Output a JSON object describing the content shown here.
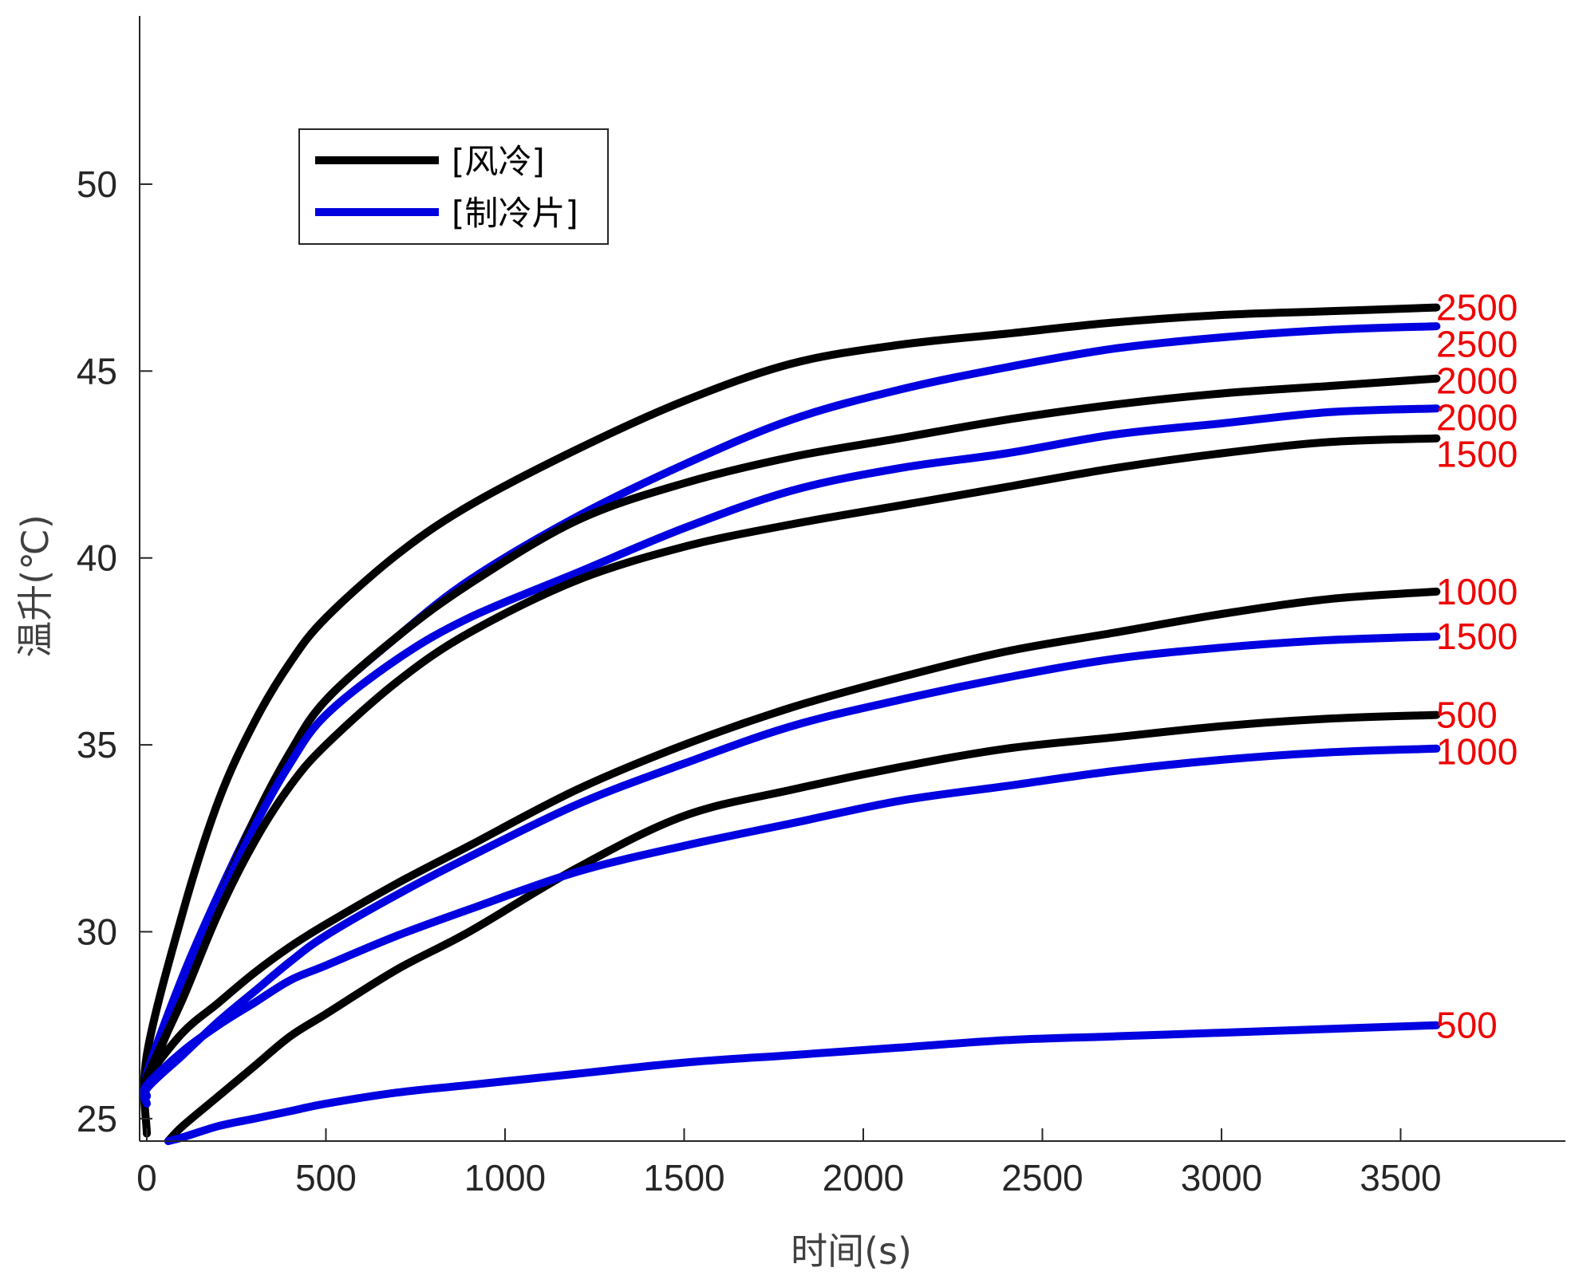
{
  "chart_data": {
    "type": "line",
    "title": "",
    "xlabel": "时间(s)",
    "ylabel": "温升(℃)",
    "xlim": [
      -20,
      3960
    ],
    "ylim": [
      24.4,
      54.5
    ],
    "xticks": [
      0,
      500,
      1000,
      1500,
      2000,
      2500,
      3000,
      3500
    ],
    "yticks": [
      25,
      30,
      35,
      40,
      45,
      50
    ],
    "grid": false,
    "legend": {
      "position": "top-left",
      "entries": [
        {
          "label": "[风冷]",
          "color": "#000000"
        },
        {
          "label": "[制冷片]",
          "color": "#0000e0"
        }
      ]
    },
    "x": [
      0,
      100,
      200,
      300,
      400,
      500,
      700,
      900,
      1200,
      1500,
      1800,
      2100,
      2400,
      2700,
      3000,
      3300,
      3600
    ],
    "series": [
      {
        "legend_group": "[风冷]",
        "end_label": "2500",
        "color": "#000000",
        "start": [
          0,
          24.6
        ],
        "values": [
          26.7,
          30.5,
          33.5,
          35.6,
          37.2,
          38.4,
          40.1,
          41.4,
          42.9,
          44.2,
          45.2,
          45.7,
          46.0,
          46.3,
          46.5,
          46.6,
          46.7
        ]
      },
      {
        "legend_group": "[制冷片]",
        "end_label": "2500",
        "color": "#0000e0",
        "start": [
          0,
          25.6
        ],
        "values": [
          26.2,
          28.8,
          31.0,
          33.0,
          34.8,
          36.2,
          37.9,
          39.4,
          41.1,
          42.5,
          43.7,
          44.5,
          45.1,
          45.6,
          45.9,
          46.1,
          46.2
        ]
      },
      {
        "legend_group": "[风冷]",
        "end_label": "2000",
        "color": "#000000",
        "start": [
          0,
          25.9
        ],
        "values": [
          26.0,
          28.3,
          30.8,
          33.0,
          34.8,
          36.2,
          37.9,
          39.3,
          41.0,
          42.0,
          42.7,
          43.2,
          43.7,
          44.1,
          44.4,
          44.6,
          44.8
        ]
      },
      {
        "legend_group": "[制冷片]",
        "end_label": "2000",
        "color": "#0000e0",
        "start": [
          0,
          25.8
        ],
        "values": [
          26.0,
          28.5,
          30.8,
          32.8,
          34.5,
          35.8,
          37.3,
          38.4,
          39.6,
          40.8,
          41.8,
          42.4,
          42.8,
          43.3,
          43.6,
          43.9,
          44.0
        ]
      },
      {
        "legend_group": "[风冷]",
        "end_label": "1500",
        "color": "#000000",
        "start": [
          0,
          25.6
        ],
        "values": [
          26.1,
          28.2,
          30.5,
          32.4,
          33.9,
          35.0,
          36.7,
          38.0,
          39.4,
          40.3,
          40.9,
          41.4,
          41.9,
          42.4,
          42.8,
          43.1,
          43.2
        ]
      },
      {
        "legend_group": "[风冷]",
        "end_label": "1000",
        "color": "#000000",
        "start": [
          0,
          26.0
        ],
        "values": [
          26.1,
          27.3,
          28.1,
          28.9,
          29.6,
          30.2,
          31.3,
          32.3,
          33.8,
          35.0,
          36.0,
          36.8,
          37.5,
          38.0,
          38.5,
          38.9,
          39.1
        ]
      },
      {
        "legend_group": "[制冷片]",
        "end_label": "1500",
        "color": "#0000e0",
        "start": [
          0,
          25.4
        ],
        "values": [
          25.8,
          26.7,
          27.6,
          28.4,
          29.2,
          29.9,
          31.0,
          32.0,
          33.4,
          34.5,
          35.5,
          36.2,
          36.8,
          37.3,
          37.6,
          37.8,
          37.9
        ]
      },
      {
        "legend_group": "[风冷]",
        "end_label": "500",
        "color": "#000000",
        "start": [
          60,
          24.4
        ],
        "values": [
          null,
          24.8,
          25.6,
          26.4,
          27.2,
          27.8,
          29.0,
          30.0,
          31.7,
          33.1,
          33.8,
          34.4,
          34.9,
          35.2,
          35.5,
          35.7,
          35.8
        ]
      },
      {
        "legend_group": "[制冷片]",
        "end_label": "1000",
        "color": "#0000e0",
        "start": [
          0,
          25.6
        ],
        "values": [
          25.9,
          26.8,
          27.5,
          28.1,
          28.7,
          29.1,
          29.9,
          30.6,
          31.6,
          32.3,
          32.9,
          33.5,
          33.9,
          34.3,
          34.6,
          34.8,
          34.9
        ]
      },
      {
        "legend_group": "[制冷片]",
        "end_label": "500",
        "color": "#0000e0",
        "start": [
          60,
          24.4
        ],
        "values": [
          null,
          24.5,
          24.8,
          25.0,
          25.2,
          25.4,
          25.7,
          25.9,
          26.2,
          26.5,
          26.7,
          26.9,
          27.1,
          27.2,
          27.3,
          27.4,
          27.5
        ]
      }
    ]
  }
}
